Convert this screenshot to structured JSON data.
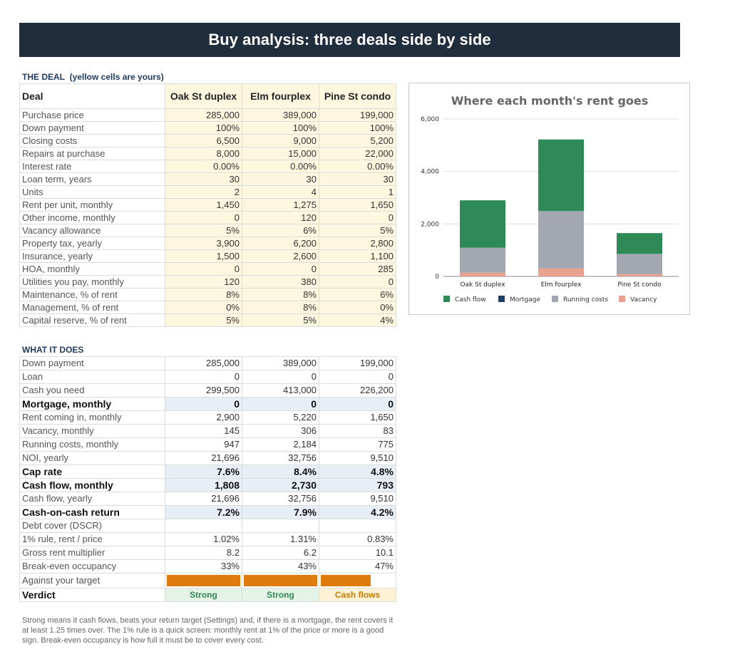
{
  "title": "Buy analysis: three deals side by side",
  "deal_section": {
    "label": "THE DEAL",
    "sublabel": "(yellow cells are yours)",
    "header": "Deal",
    "deals": [
      "Oak St duplex",
      "Elm fourplex",
      "Pine St condo"
    ],
    "rows": [
      {
        "label": "Purchase price",
        "values": [
          "285,000",
          "389,000",
          "199,000"
        ]
      },
      {
        "label": "Down payment",
        "values": [
          "100%",
          "100%",
          "100%"
        ]
      },
      {
        "label": "Closing costs",
        "values": [
          "6,500",
          "9,000",
          "5,200"
        ]
      },
      {
        "label": "Repairs at purchase",
        "values": [
          "8,000",
          "15,000",
          "22,000"
        ]
      },
      {
        "label": "Interest rate",
        "values": [
          "0.00%",
          "0.00%",
          "0.00%"
        ]
      },
      {
        "label": "Loan term, years",
        "values": [
          "30",
          "30",
          "30"
        ]
      },
      {
        "label": "Units",
        "values": [
          "2",
          "4",
          "1"
        ]
      },
      {
        "label": "Rent per unit, monthly",
        "values": [
          "1,450",
          "1,275",
          "1,650"
        ]
      },
      {
        "label": "Other income, monthly",
        "values": [
          "0",
          "120",
          "0"
        ]
      },
      {
        "label": "Vacancy allowance",
        "values": [
          "5%",
          "6%",
          "5%"
        ]
      },
      {
        "label": "Property tax, yearly",
        "values": [
          "3,900",
          "6,200",
          "2,800"
        ]
      },
      {
        "label": "Insurance, yearly",
        "values": [
          "1,500",
          "2,600",
          "1,100"
        ]
      },
      {
        "label": "HOA, monthly",
        "values": [
          "0",
          "0",
          "285"
        ]
      },
      {
        "label": "Utilities you pay, monthly",
        "values": [
          "120",
          "380",
          "0"
        ]
      },
      {
        "label": "Maintenance, % of rent",
        "values": [
          "8%",
          "8%",
          "6%"
        ]
      },
      {
        "label": "Management, % of rent",
        "values": [
          "0%",
          "8%",
          "0%"
        ]
      },
      {
        "label": "Capital reserve, % of rent",
        "values": [
          "5%",
          "5%",
          "4%"
        ]
      }
    ]
  },
  "output_section": {
    "label": "WHAT IT DOES",
    "rows": [
      {
        "label": "Down payment",
        "values": [
          "285,000",
          "389,000",
          "199,000"
        ],
        "bold": false
      },
      {
        "label": "Loan",
        "values": [
          "0",
          "0",
          "0"
        ],
        "bold": false
      },
      {
        "label": "Cash you need",
        "values": [
          "299,500",
          "413,000",
          "226,200"
        ],
        "bold": false
      },
      {
        "label": "Mortgage, monthly",
        "values": [
          "0",
          "0",
          "0"
        ],
        "bold": true
      },
      {
        "label": "Rent coming in, monthly",
        "values": [
          "2,900",
          "5,220",
          "1,650"
        ],
        "bold": false
      },
      {
        "label": "Vacancy, monthly",
        "values": [
          "145",
          "306",
          "83"
        ],
        "bold": false
      },
      {
        "label": "Running costs, monthly",
        "values": [
          "947",
          "2,184",
          "775"
        ],
        "bold": false
      },
      {
        "label": "NOI, yearly",
        "values": [
          "21,696",
          "32,756",
          "9,510"
        ],
        "bold": false
      },
      {
        "label": "Cap rate",
        "values": [
          "7.6%",
          "8.4%",
          "4.8%"
        ],
        "bold": true
      },
      {
        "label": "Cash flow, monthly",
        "values": [
          "1,808",
          "2,730",
          "793"
        ],
        "bold": true
      },
      {
        "label": "Cash flow, yearly",
        "values": [
          "21,696",
          "32,756",
          "9,510"
        ],
        "bold": false
      },
      {
        "label": "Cash-on-cash return",
        "values": [
          "7.2%",
          "7.9%",
          "4.2%"
        ],
        "bold": true
      },
      {
        "label": "Debt cover (DSCR)",
        "values": [
          "",
          "",
          ""
        ],
        "bold": false
      },
      {
        "label": "1% rule, rent / price",
        "values": [
          "1.02%",
          "1.31%",
          "0.83%"
        ],
        "bold": false
      },
      {
        "label": "Gross rent multiplier",
        "values": [
          "8.2",
          "6.2",
          "10.1"
        ],
        "bold": false
      },
      {
        "label": "Break-even occupancy",
        "values": [
          "33%",
          "43%",
          "47%"
        ],
        "bold": false
      }
    ],
    "target_label": "Against your target",
    "target_fill": [
      1.0,
      1.0,
      0.68
    ],
    "verdict_label": "Verdict",
    "verdicts": [
      {
        "text": "Strong",
        "kind": "strong"
      },
      {
        "text": "Strong",
        "kind": "strong"
      },
      {
        "text": "Cash flows",
        "kind": "cash"
      }
    ]
  },
  "note": "Strong means it cash flows, beats your return target (Settings) and, if there is a mortgage, the rent covers it at least 1.25 times over. The 1% rule is a quick screen: monthly rent at 1% of the price or more is a good sign. Break-even occupancy is how full it must be to cover every cost.",
  "chart_data": {
    "type": "bar",
    "stacked": true,
    "title": "Where each month's rent goes",
    "categories": [
      "Oak St duplex",
      "Elm fourplex",
      "Pine St condo"
    ],
    "series": [
      {
        "name": "Vacancy",
        "values": [
          145,
          306,
          83
        ],
        "color": "#e8a090"
      },
      {
        "name": "Running costs",
        "values": [
          947,
          2184,
          775
        ],
        "color": "#a3a8b0"
      },
      {
        "name": "Mortgage",
        "values": [
          0,
          0,
          0
        ],
        "color": "#1f3b66"
      },
      {
        "name": "Cash flow",
        "values": [
          1808,
          2730,
          793
        ],
        "color": "#2e8b57"
      }
    ],
    "legend_order": [
      "Cash flow",
      "Mortgage",
      "Running costs",
      "Vacancy"
    ],
    "yticks": [
      "0",
      "2,000",
      "4,000",
      "6,000"
    ],
    "ytick_values": [
      0,
      2000,
      4000,
      6000
    ],
    "ylim": [
      0,
      6000
    ],
    "grid": true,
    "legend": "bottom"
  }
}
